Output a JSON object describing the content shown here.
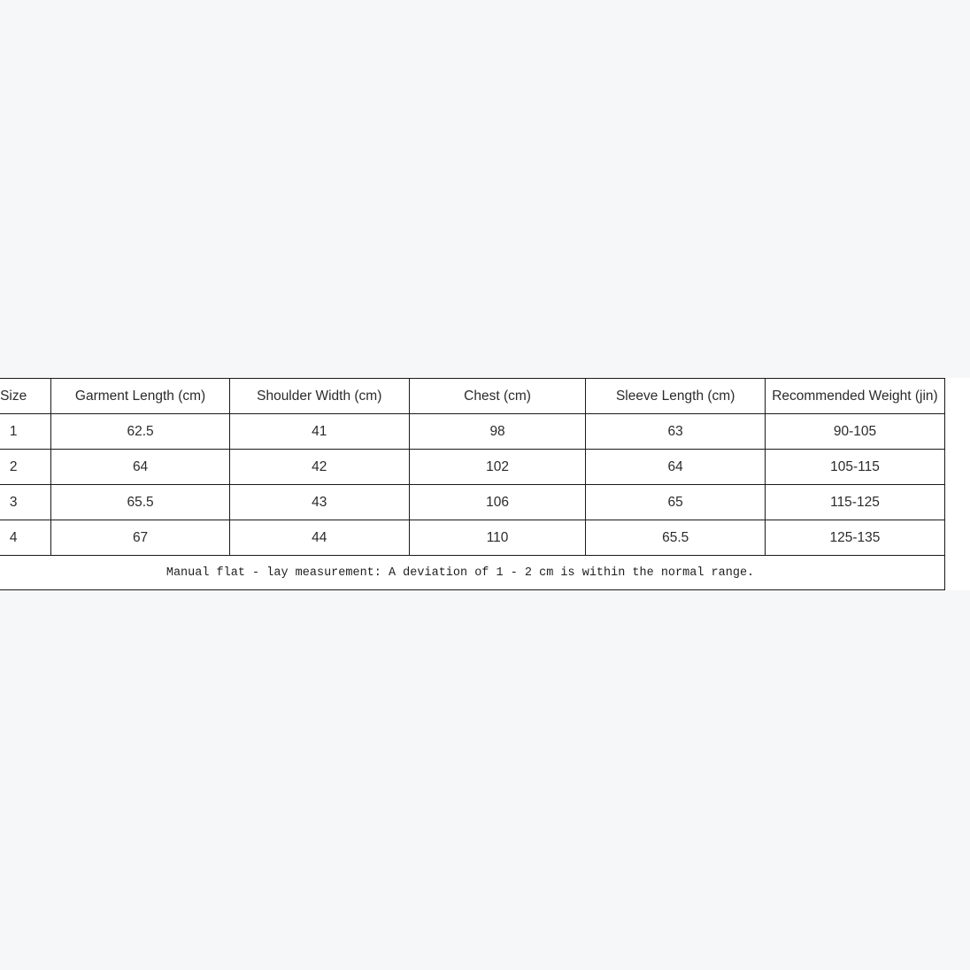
{
  "page": {
    "background_color": "#f6f7f8",
    "table_background_color": "#ffffff",
    "border_color": "#1a1a1a",
    "text_color": "#2b2b2b"
  },
  "table": {
    "columns": [
      "Size",
      "Garment Length (cm)",
      "Shoulder Width (cm)",
      "Chest (cm)",
      "Sleeve Length (cm)",
      "Recommended Weight (jin)"
    ],
    "rows": [
      [
        "1",
        "62.5",
        "41",
        "98",
        "63",
        "90-105"
      ],
      [
        "2",
        "64",
        "42",
        "102",
        "64",
        "105-115"
      ],
      [
        "3",
        "65.5",
        "43",
        "106",
        "65",
        "115-125"
      ],
      [
        "4",
        "67",
        "44",
        "110",
        "65.5",
        "125-135"
      ]
    ],
    "note": "Manual flat - lay measurement: A deviation of 1 - 2 cm is within the normal range."
  },
  "chart_data": {
    "type": "table",
    "title": "",
    "columns": [
      "Size",
      "Garment Length (cm)",
      "Shoulder Width (cm)",
      "Chest (cm)",
      "Sleeve Length (cm)",
      "Recommended Weight (jin)"
    ],
    "rows": [
      [
        "1",
        "62.5",
        "41",
        "98",
        "63",
        "90-105"
      ],
      [
        "2",
        "64",
        "42",
        "102",
        "64",
        "105-115"
      ],
      [
        "3",
        "65.5",
        "43",
        "106",
        "65",
        "115-125"
      ],
      [
        "4",
        "67",
        "44",
        "110",
        "65.5",
        "125-135"
      ]
    ],
    "footnote": "Manual flat - lay measurement: A deviation of 1 - 2 cm is within the normal range."
  }
}
